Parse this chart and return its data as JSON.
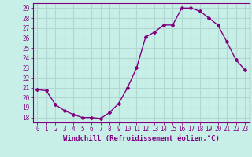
{
  "x": [
    0,
    1,
    2,
    3,
    4,
    5,
    6,
    7,
    8,
    9,
    10,
    11,
    12,
    13,
    14,
    15,
    16,
    17,
    18,
    19,
    20,
    21,
    22,
    23
  ],
  "y": [
    20.8,
    20.7,
    19.3,
    18.7,
    18.3,
    18.0,
    18.0,
    17.9,
    18.5,
    19.4,
    21.0,
    23.0,
    26.1,
    26.6,
    27.3,
    27.3,
    29.0,
    29.0,
    28.7,
    28.0,
    27.3,
    25.6,
    23.8,
    22.8
  ],
  "ylim": [
    17.5,
    29.5
  ],
  "xlim": [
    -0.5,
    23.5
  ],
  "yticks": [
    18,
    19,
    20,
    21,
    22,
    23,
    24,
    25,
    26,
    27,
    28,
    29
  ],
  "xticks": [
    0,
    1,
    2,
    3,
    4,
    5,
    6,
    7,
    8,
    9,
    10,
    11,
    12,
    13,
    14,
    15,
    16,
    17,
    18,
    19,
    20,
    21,
    22,
    23
  ],
  "line_color": "#800080",
  "marker": "D",
  "marker_size": 2.0,
  "bg_color": "#c8eee8",
  "grid_color": "#b0d8d0",
  "xlabel": "Windchill (Refroidissement éolien,°C)",
  "xlabel_fontsize": 6.5,
  "tick_fontsize": 5.5,
  "line_width": 1.0
}
